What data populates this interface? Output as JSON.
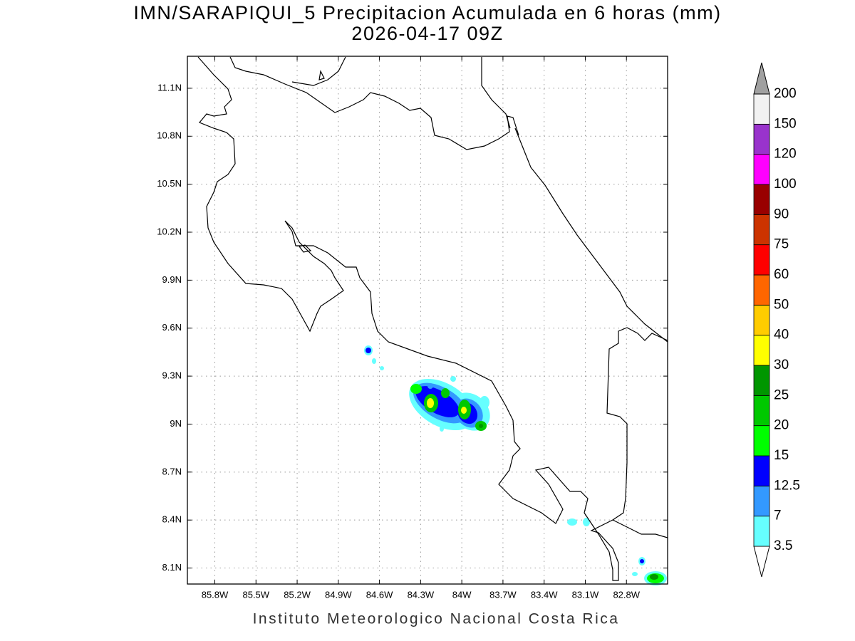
{
  "map": {
    "title": "IMN/SARAPIQUI_5 Precipitacion Acumulada en 6 horas (mm)",
    "subtitle": "2026-04-17 09Z",
    "footer": "Instituto Meteorologico Nacional Costa Rica",
    "xlim": [
      -86,
      -82.5
    ],
    "ylim": [
      8,
      11.3
    ],
    "xticks": [
      {
        "value": -85.8,
        "label": "85.8W"
      },
      {
        "value": -85.5,
        "label": "85.5W"
      },
      {
        "value": -85.2,
        "label": "85.2W"
      },
      {
        "value": -84.9,
        "label": "84.9W"
      },
      {
        "value": -84.6,
        "label": "84.6W"
      },
      {
        "value": -84.3,
        "label": "84.3W"
      },
      {
        "value": -84,
        "label": "84W"
      },
      {
        "value": -83.7,
        "label": "83.7W"
      },
      {
        "value": -83.4,
        "label": "83.4W"
      },
      {
        "value": -83.1,
        "label": "83.1W"
      },
      {
        "value": -82.8,
        "label": "82.8W"
      }
    ],
    "yticks": [
      {
        "value": 8.1,
        "label": "8.1N"
      },
      {
        "value": 8.4,
        "label": "8.4N"
      },
      {
        "value": 8.7,
        "label": "8.7N"
      },
      {
        "value": 9,
        "label": "9N"
      },
      {
        "value": 9.3,
        "label": "9.3N"
      },
      {
        "value": 9.6,
        "label": "9.6N"
      },
      {
        "value": 9.9,
        "label": "9.9N"
      },
      {
        "value": 10.2,
        "label": "10.2N"
      },
      {
        "value": 10.5,
        "label": "10.5N"
      },
      {
        "value": 10.8,
        "label": "10.8N"
      },
      {
        "value": 11.1,
        "label": "11.1N"
      }
    ],
    "grid": true,
    "colorbar": {
      "levels": [
        3.5,
        7,
        12.5,
        15,
        20,
        25,
        30,
        40,
        50,
        60,
        75,
        90,
        100,
        120,
        150,
        200
      ],
      "colors": [
        "#ffffff",
        "#66ffff",
        "#3399ff",
        "#0000ff",
        "#00ff00",
        "#00c800",
        "#009600",
        "#ffff00",
        "#ffcc00",
        "#ff6600",
        "#ff0000",
        "#cc3300",
        "#990000",
        "#ff00ff",
        "#9933cc",
        "#f2f2f2",
        "#a0a0a0"
      ]
    }
  }
}
